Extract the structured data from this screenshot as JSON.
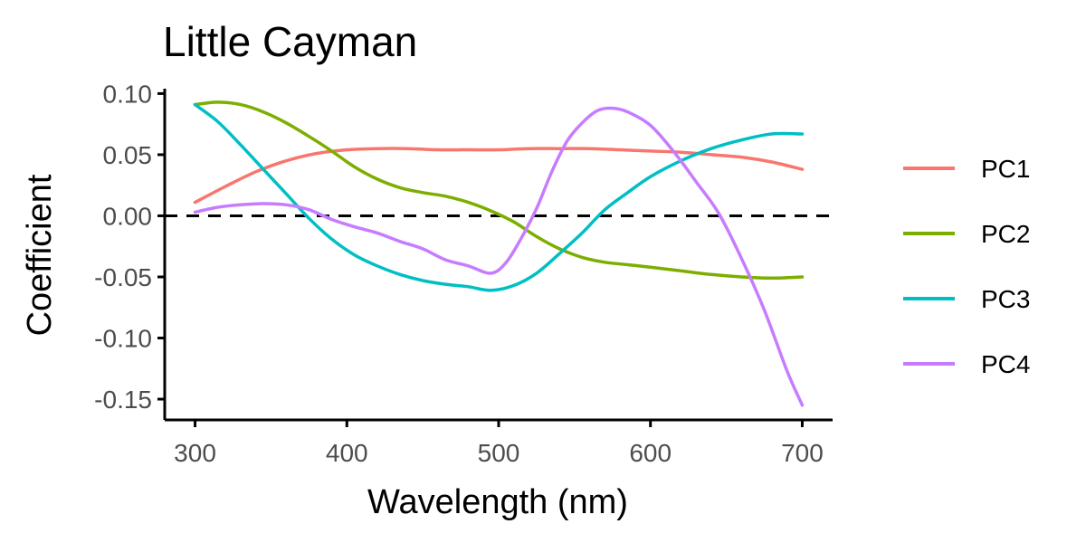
{
  "chart_data": {
    "type": "line",
    "title": "Little Cayman",
    "xlabel": "Wavelength (nm)",
    "ylabel": "Coefficient",
    "xlim": [
      280,
      720
    ],
    "ylim": [
      -0.167,
      0.104
    ],
    "x_ticks": [
      300,
      400,
      500,
      600,
      700
    ],
    "x_tick_labels": [
      "300",
      "400",
      "500",
      "600",
      "700"
    ],
    "y_ticks": [
      0.1,
      0.05,
      0.0,
      -0.05,
      -0.1,
      -0.15
    ],
    "y_tick_labels": [
      "0.10",
      "0.05",
      "0.00",
      "-0.05",
      "-0.10",
      "-0.15"
    ],
    "reference_line": {
      "y": 0,
      "style": "dashed"
    },
    "grid": false,
    "legend_position": "right",
    "series": [
      {
        "name": "PC1",
        "color": "#F8766D",
        "x": [
          300,
          320,
          340,
          360,
          380,
          400,
          420,
          440,
          460,
          480,
          500,
          520,
          540,
          560,
          580,
          600,
          620,
          640,
          660,
          680,
          700
        ],
        "y": [
          0.011,
          0.024,
          0.036,
          0.045,
          0.051,
          0.054,
          0.055,
          0.055,
          0.054,
          0.054,
          0.054,
          0.055,
          0.055,
          0.055,
          0.054,
          0.053,
          0.052,
          0.05,
          0.048,
          0.044,
          0.038
        ]
      },
      {
        "name": "PC2",
        "color": "#7CAE00",
        "x": [
          300,
          315,
          330,
          345,
          360,
          375,
          390,
          405,
          420,
          435,
          450,
          465,
          480,
          495,
          510,
          525,
          540,
          555,
          570,
          585,
          600,
          620,
          640,
          660,
          680,
          700
        ],
        "y": [
          0.091,
          0.093,
          0.091,
          0.085,
          0.076,
          0.065,
          0.053,
          0.04,
          0.03,
          0.023,
          0.019,
          0.016,
          0.011,
          0.004,
          -0.005,
          -0.017,
          -0.027,
          -0.034,
          -0.038,
          -0.04,
          -0.042,
          -0.045,
          -0.048,
          -0.05,
          -0.051,
          -0.05
        ]
      },
      {
        "name": "PC3",
        "color": "#00BFC4",
        "x": [
          300,
          315,
          330,
          345,
          360,
          375,
          390,
          405,
          420,
          435,
          450,
          465,
          480,
          495,
          510,
          525,
          540,
          555,
          570,
          585,
          600,
          620,
          640,
          660,
          680,
          700
        ],
        "y": [
          0.091,
          0.077,
          0.058,
          0.038,
          0.018,
          -0.002,
          -0.019,
          -0.032,
          -0.041,
          -0.048,
          -0.053,
          -0.056,
          -0.058,
          -0.061,
          -0.057,
          -0.047,
          -0.031,
          -0.014,
          0.005,
          0.019,
          0.032,
          0.045,
          0.055,
          0.062,
          0.067,
          0.067
        ]
      },
      {
        "name": "PC4",
        "color": "#C77CFF",
        "x": [
          300,
          315,
          330,
          345,
          360,
          375,
          390,
          405,
          420,
          435,
          450,
          465,
          480,
          495,
          505,
          515,
          525,
          535,
          545,
          555,
          565,
          575,
          585,
          600,
          615,
          630,
          645,
          660,
          675,
          690,
          700
        ],
        "y": [
          0.003,
          0.007,
          0.009,
          0.01,
          0.009,
          0.005,
          -0.003,
          -0.009,
          -0.014,
          -0.021,
          -0.027,
          -0.036,
          -0.041,
          -0.047,
          -0.038,
          -0.018,
          0.006,
          0.036,
          0.061,
          0.076,
          0.086,
          0.088,
          0.085,
          0.074,
          0.053,
          0.028,
          0.002,
          -0.035,
          -0.077,
          -0.127,
          -0.155
        ]
      }
    ]
  }
}
